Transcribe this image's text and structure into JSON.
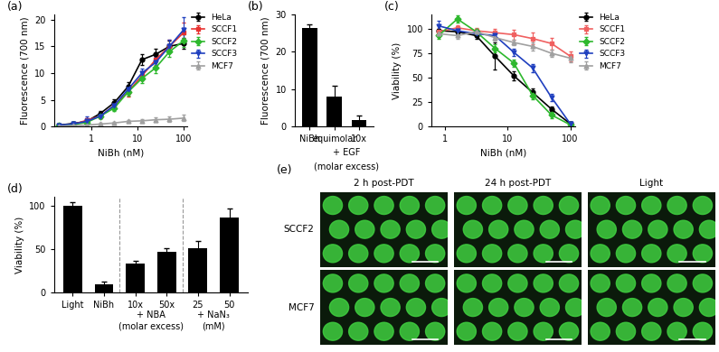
{
  "chart_data": [
    {
      "type": "line",
      "label": "(a)",
      "xlabel": "NiBh (nM)",
      "ylabel": "Fluorescence (700 nm)",
      "log": "x",
      "legend": "upper left",
      "x": [
        0.195,
        0.39,
        0.78,
        1.56,
        3.125,
        6.25,
        12.5,
        25,
        50,
        100
      ],
      "xlim": [
        0.15,
        120
      ],
      "xticks": [
        1,
        10,
        100
      ],
      "ylim": [
        0,
        21
      ],
      "yticks": [
        0,
        5,
        10,
        15,
        20
      ],
      "series": [
        {
          "name": "HeLa",
          "color": "#000000",
          "marker": "circle",
          "line_style": "solid",
          "values": [
            0.3,
            0.6,
            1.0,
            2.5,
            4.5,
            7.5,
            12.5,
            13.5,
            15,
            15.5
          ],
          "errors": [
            0.2,
            0.3,
            0.3,
            0.5,
            0.6,
            0.8,
            1.0,
            1.0,
            1.0,
            1.0
          ]
        },
        {
          "name": "SCCF1",
          "color": "#e8312f",
          "marker": "square",
          "line_style": "solid",
          "values": [
            0.2,
            0.4,
            1.2,
            2.0,
            4.0,
            6.5,
            9.5,
            12.5,
            15,
            17.5
          ],
          "errors": [
            0.2,
            0.2,
            0.4,
            0.5,
            0.6,
            0.8,
            0.9,
            1.0,
            1.2,
            2.0
          ]
        },
        {
          "name": "SCCF2",
          "color": "#2db82d",
          "marker": "diamond",
          "line_style": "solid",
          "values": [
            0.2,
            0.4,
            0.8,
            2.0,
            3.5,
            6.5,
            9,
            11,
            14,
            16
          ],
          "errors": [
            0.2,
            0.2,
            0.3,
            0.4,
            0.5,
            0.7,
            0.8,
            1.0,
            1.0,
            1.2
          ]
        },
        {
          "name": "SCCF3",
          "color": "#1f3fbf",
          "marker": "triangle_down",
          "line_style": "solid",
          "values": [
            0.3,
            0.5,
            1.0,
            2.0,
            4.0,
            7.0,
            10,
            12,
            15,
            18
          ],
          "errors": [
            0.2,
            0.3,
            1.0,
            0.5,
            0.6,
            0.8,
            0.9,
            1.0,
            1.2,
            2.5
          ]
        },
        {
          "name": "MCF7",
          "color": "#a0a0a0",
          "marker": "triangle_up",
          "line_style": "solid",
          "values": [
            0.1,
            0.2,
            0.3,
            0.5,
            0.7,
            1.0,
            1.1,
            1.3,
            1.4,
            1.6
          ],
          "errors": [
            0.1,
            0.1,
            0.1,
            0.2,
            0.2,
            0.3,
            0.3,
            0.4,
            0.5,
            0.6
          ]
        }
      ]
    },
    {
      "type": "bar",
      "label": "(b)",
      "ylabel": "Fluorescence (700 nm)",
      "color": "#000000",
      "categories": [
        "NiBh",
        "equimolar",
        "10x"
      ],
      "values": [
        26.3,
        8.1,
        1.8
      ],
      "errors": [
        0.9,
        2.9,
        1.2
      ],
      "ylim": [
        0,
        30
      ],
      "yticks": [
        0,
        10,
        20,
        30
      ],
      "annotations": [
        {
          "lines": [
            "+ EGF",
            "(molar excess)"
          ],
          "categories": [
            "equimolar",
            "10x"
          ]
        }
      ]
    },
    {
      "type": "line",
      "label": "(c)",
      "xlabel": "NiBh (nM)",
      "ylabel": "Viability (%)",
      "log": "x",
      "legend": "upper left",
      "x": [
        0.78,
        1.56,
        3.125,
        6.25,
        12.5,
        25,
        50,
        100
      ],
      "xlim": [
        0.6,
        120
      ],
      "xticks": [
        1,
        10,
        100
      ],
      "ylim": [
        0,
        115
      ],
      "yticks": [
        0,
        25,
        50,
        75,
        100
      ],
      "series": [
        {
          "name": "HeLa",
          "color": "#000000",
          "marker": "circle",
          "line_style": "solid",
          "values": [
            98,
            97,
            93,
            72,
            52,
            35,
            18,
            3
          ],
          "errors": [
            2,
            3,
            3,
            14,
            5,
            4,
            3,
            2
          ]
        },
        {
          "name": "SCCF1",
          "color": "#f06060",
          "marker": "square",
          "line_style": "solid",
          "values": [
            97,
            101,
            98,
            96,
            94,
            90,
            85,
            72
          ],
          "errors": [
            3,
            3,
            3,
            4,
            5,
            6,
            6,
            5
          ]
        },
        {
          "name": "SCCF2",
          "color": "#2db82d",
          "marker": "diamond",
          "line_style": "solid",
          "values": [
            93,
            110,
            97,
            80,
            65,
            32,
            12,
            2
          ],
          "errors": [
            3,
            4,
            3,
            4,
            4,
            4,
            3,
            2
          ]
        },
        {
          "name": "SCCF3",
          "color": "#1f3fbf",
          "marker": "triangle_down",
          "line_style": "solid",
          "values": [
            103,
            98,
            95,
            93,
            76,
            60,
            30,
            3
          ],
          "errors": [
            5,
            3,
            3,
            3,
            4,
            4,
            4,
            2
          ]
        },
        {
          "name": "MCF7",
          "color": "#a0a0a0",
          "marker": "triangle_up",
          "line_style": "solid",
          "values": [
            95,
            93,
            97,
            91,
            86,
            82,
            75,
            70
          ],
          "errors": [
            3,
            3,
            3,
            3,
            3,
            4,
            4,
            4
          ]
        }
      ]
    },
    {
      "type": "bar",
      "label": "(d)",
      "ylabel": "Viability (%)",
      "color": "#000000",
      "categories": [
        "Light",
        "NiBh",
        "10x",
        "50x",
        "25",
        "50"
      ],
      "values": [
        100,
        9,
        33,
        47,
        51,
        86
      ],
      "errors": [
        4,
        3,
        3,
        4,
        8,
        11
      ],
      "ylim": [
        0,
        110
      ],
      "yticks": [
        0,
        50,
        100
      ],
      "annotations": [
        {
          "lines": [
            "+ NBA",
            "(molar excess)"
          ],
          "categories": [
            "10x",
            "50x"
          ]
        },
        {
          "lines": [
            "+ NaN₃",
            "(mM)"
          ],
          "categories": [
            "25",
            "50"
          ]
        }
      ]
    },
    {
      "type": "image_grid",
      "label": "(e)",
      "columns": [
        "2 h post-PDT",
        "24 h post-PDT",
        "Light"
      ],
      "rows": [
        "SCCF2",
        "MCF7"
      ]
    }
  ]
}
